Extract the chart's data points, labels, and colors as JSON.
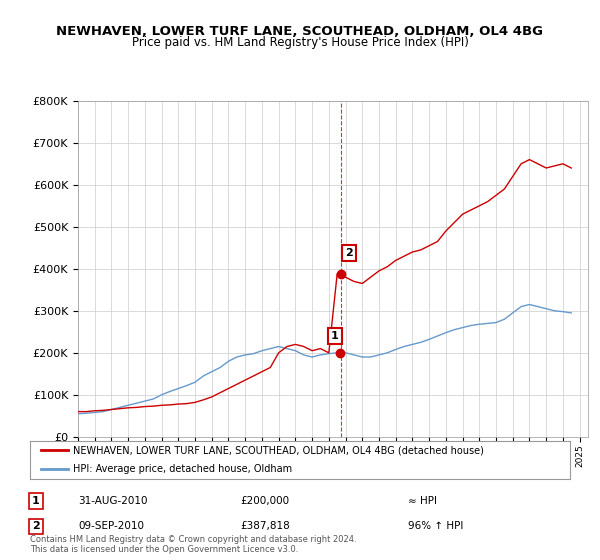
{
  "title": "NEWHAVEN, LOWER TURF LANE, SCOUTHEAD, OLDHAM, OL4 4BG",
  "subtitle": "Price paid vs. HM Land Registry's House Price Index (HPI)",
  "ylabel_ticks": [
    "£0",
    "£100K",
    "£200K",
    "£300K",
    "£400K",
    "£500K",
    "£600K",
    "£700K",
    "£800K"
  ],
  "ylim": [
    0,
    800000
  ],
  "xlim": [
    1995,
    2025
  ],
  "legend_line1": "NEWHAVEN, LOWER TURF LANE, SCOUTHEAD, OLDHAM, OL4 4BG (detached house)",
  "legend_line2": "HPI: Average price, detached house, Oldham",
  "red_color": "#cc0000",
  "blue_color": "#6699cc",
  "transaction1_label": "1",
  "transaction1_date": "31-AUG-2010",
  "transaction1_price": "£200,000",
  "transaction1_hpi": "≈ HPI",
  "transaction2_label": "2",
  "transaction2_date": "09-SEP-2010",
  "transaction2_price": "£387,818",
  "transaction2_hpi": "96% ↑ HPI",
  "footer": "Contains HM Land Registry data © Crown copyright and database right 2024.\nThis data is licensed under the Open Government Licence v3.0.",
  "red_x": [
    1995.0,
    1995.5,
    1996.0,
    1996.5,
    1997.0,
    1997.5,
    1998.0,
    1998.5,
    1999.0,
    1999.5,
    2000.0,
    2000.5,
    2001.0,
    2001.5,
    2002.0,
    2002.5,
    2003.0,
    2003.5,
    2004.0,
    2004.5,
    2005.0,
    2005.5,
    2006.0,
    2006.5,
    2007.0,
    2007.5,
    2008.0,
    2008.5,
    2009.0,
    2009.5,
    2010.0,
    2010.5,
    2010.67,
    2011.0,
    2011.5,
    2012.0,
    2012.5,
    2013.0,
    2013.5,
    2014.0,
    2014.5,
    2015.0,
    2015.5,
    2016.0,
    2016.5,
    2017.0,
    2017.5,
    2018.0,
    2018.5,
    2019.0,
    2019.5,
    2020.0,
    2020.5,
    2021.0,
    2021.5,
    2022.0,
    2022.5,
    2023.0,
    2023.5,
    2024.0,
    2024.5
  ],
  "red_y": [
    60000,
    60000,
    62000,
    63000,
    65000,
    67000,
    69000,
    70000,
    72000,
    73000,
    75000,
    76000,
    78000,
    79000,
    82000,
    88000,
    95000,
    105000,
    115000,
    125000,
    135000,
    145000,
    155000,
    165000,
    200000,
    215000,
    220000,
    215000,
    205000,
    210000,
    200000,
    387818,
    387818,
    380000,
    370000,
    365000,
    380000,
    395000,
    405000,
    420000,
    430000,
    440000,
    445000,
    455000,
    465000,
    490000,
    510000,
    530000,
    540000,
    550000,
    560000,
    575000,
    590000,
    620000,
    650000,
    660000,
    650000,
    640000,
    645000,
    650000,
    640000
  ],
  "blue_x": [
    1995.0,
    1995.5,
    1996.0,
    1996.5,
    1997.0,
    1997.5,
    1998.0,
    1998.5,
    1999.0,
    1999.5,
    2000.0,
    2000.5,
    2001.0,
    2001.5,
    2002.0,
    2002.5,
    2003.0,
    2003.5,
    2004.0,
    2004.5,
    2005.0,
    2005.5,
    2006.0,
    2006.5,
    2007.0,
    2007.5,
    2008.0,
    2008.5,
    2009.0,
    2009.5,
    2010.0,
    2010.5,
    2011.0,
    2011.5,
    2012.0,
    2012.5,
    2013.0,
    2013.5,
    2014.0,
    2014.5,
    2015.0,
    2015.5,
    2016.0,
    2016.5,
    2017.0,
    2017.5,
    2018.0,
    2018.5,
    2019.0,
    2019.5,
    2020.0,
    2020.5,
    2021.0,
    2021.5,
    2022.0,
    2022.5,
    2023.0,
    2023.5,
    2024.0,
    2024.5
  ],
  "blue_y": [
    55000,
    56000,
    58000,
    60000,
    65000,
    70000,
    75000,
    80000,
    85000,
    90000,
    100000,
    108000,
    115000,
    122000,
    130000,
    145000,
    155000,
    165000,
    180000,
    190000,
    195000,
    198000,
    205000,
    210000,
    215000,
    210000,
    205000,
    195000,
    190000,
    195000,
    198000,
    200000,
    200000,
    195000,
    190000,
    190000,
    195000,
    200000,
    208000,
    215000,
    220000,
    225000,
    232000,
    240000,
    248000,
    255000,
    260000,
    265000,
    268000,
    270000,
    272000,
    280000,
    295000,
    310000,
    315000,
    310000,
    305000,
    300000,
    298000,
    295000
  ],
  "tx1_x": 2010.67,
  "tx1_y": 200000,
  "tx2_x": 2010.7,
  "tx2_y": 387818,
  "background_color": "#ffffff",
  "grid_color": "#cccccc",
  "box_color": "#cc0000"
}
